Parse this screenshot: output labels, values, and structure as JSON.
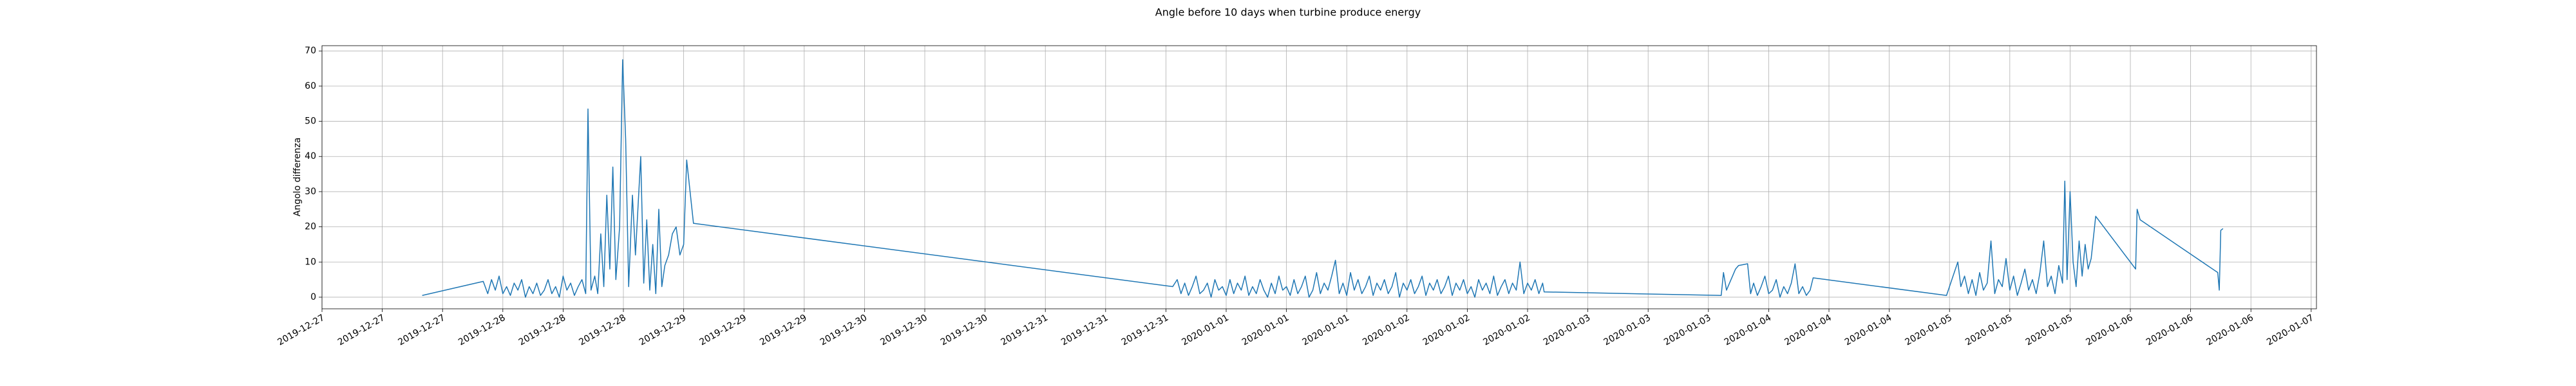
{
  "chart_data": {
    "type": "line",
    "title": "Angle before 10 days when turbine produce energy",
    "ylabel": "Angolo differenza",
    "color": "#1f77b4",
    "grid": true,
    "xlim": [
      0,
      264.7
    ],
    "ylim": [
      -3.3,
      71.5
    ],
    "yticks": [
      0,
      10,
      20,
      30,
      40,
      50,
      60,
      70
    ],
    "xticks": [
      {
        "value": 0,
        "label": "2019-12-27"
      },
      {
        "value": 8,
        "label": "2019-12-27"
      },
      {
        "value": 16,
        "label": "2019-12-27"
      },
      {
        "value": 24,
        "label": "2019-12-28"
      },
      {
        "value": 32,
        "label": "2019-12-28"
      },
      {
        "value": 40,
        "label": "2019-12-28"
      },
      {
        "value": 48,
        "label": "2019-12-29"
      },
      {
        "value": 56,
        "label": "2019-12-29"
      },
      {
        "value": 64,
        "label": "2019-12-29"
      },
      {
        "value": 72,
        "label": "2019-12-30"
      },
      {
        "value": 80,
        "label": "2019-12-30"
      },
      {
        "value": 88,
        "label": "2019-12-30"
      },
      {
        "value": 96,
        "label": "2019-12-31"
      },
      {
        "value": 104,
        "label": "2019-12-31"
      },
      {
        "value": 112,
        "label": "2019-12-31"
      },
      {
        "value": 120,
        "label": "2020-01-01"
      },
      {
        "value": 128,
        "label": "2020-01-01"
      },
      {
        "value": 136,
        "label": "2020-01-01"
      },
      {
        "value": 144,
        "label": "2020-01-02"
      },
      {
        "value": 152,
        "label": "2020-01-02"
      },
      {
        "value": 160,
        "label": "2020-01-02"
      },
      {
        "value": 168,
        "label": "2020-01-03"
      },
      {
        "value": 176,
        "label": "2020-01-03"
      },
      {
        "value": 184,
        "label": "2020-01-03"
      },
      {
        "value": 192,
        "label": "2020-01-04"
      },
      {
        "value": 200,
        "label": "2020-01-04"
      },
      {
        "value": 208,
        "label": "2020-01-04"
      },
      {
        "value": 216,
        "label": "2020-01-05"
      },
      {
        "value": 224,
        "label": "2020-01-05"
      },
      {
        "value": 232,
        "label": "2020-01-05"
      },
      {
        "value": 240,
        "label": "2020-01-06"
      },
      {
        "value": 248,
        "label": "2020-01-06"
      },
      {
        "value": 256,
        "label": "2020-01-06"
      },
      {
        "value": 264,
        "label": "2020-01-07"
      }
    ],
    "x": [
      13.3,
      21.4,
      22,
      22.5,
      23,
      23.5,
      24,
      24.5,
      25,
      25.5,
      26,
      26.5,
      27,
      27.5,
      28,
      28.5,
      29,
      29.5,
      30,
      30.5,
      31,
      31.5,
      32,
      32.5,
      33,
      33.5,
      34,
      34.5,
      35,
      35.3,
      35.7,
      36.2,
      36.6,
      37,
      37.4,
      37.8,
      38.2,
      38.6,
      39,
      39.5,
      39.9,
      40.3,
      40.7,
      41.2,
      41.6,
      42.3,
      42.7,
      43.1,
      43.5,
      43.9,
      44.3,
      44.7,
      45.1,
      45.5,
      46,
      46.5,
      47,
      47.5,
      48,
      48.4,
      49.3,
      112.9,
      113.5,
      114,
      114.5,
      115,
      115.5,
      116,
      116.5,
      117,
      117.5,
      118,
      118.5,
      119,
      119.5,
      120,
      120.5,
      121,
      121.5,
      122,
      122.5,
      123,
      123.5,
      124,
      124.5,
      125,
      125.5,
      126,
      126.5,
      127,
      127.5,
      128,
      128.5,
      129,
      129.5,
      130,
      130.5,
      131,
      131.5,
      132,
      132.5,
      133,
      133.5,
      134,
      134.5,
      135,
      135.5,
      136,
      136.5,
      137,
      137.5,
      138,
      138.5,
      139,
      139.5,
      140,
      140.5,
      141,
      141.5,
      142,
      142.5,
      143,
      143.5,
      144,
      144.5,
      145,
      145.5,
      146,
      146.5,
      147,
      147.5,
      148,
      148.5,
      149,
      149.5,
      150,
      150.5,
      151,
      151.5,
      152,
      152.5,
      153,
      153.5,
      154,
      154.5,
      155,
      155.5,
      156,
      156.5,
      157,
      157.5,
      158,
      158.5,
      159,
      159.5,
      160,
      160.5,
      161,
      161.5,
      162,
      162.2,
      185.7,
      186,
      186.4,
      186.8,
      187.2,
      187.6,
      188,
      189.2,
      189.6,
      190,
      190.5,
      191,
      191.5,
      192,
      192.5,
      193,
      193.5,
      194,
      194.5,
      195,
      195.5,
      196,
      196.5,
      197,
      197.5,
      197.9,
      215.6,
      217.1,
      217.5,
      218,
      218.5,
      219,
      219.5,
      220,
      220.5,
      221,
      221.5,
      222,
      222.5,
      223,
      223.5,
      224,
      224.5,
      225,
      225.5,
      226,
      226.5,
      227,
      227.5,
      228,
      228.5,
      229,
      229.5,
      230,
      230.5,
      231,
      231.3,
      231.6,
      232,
      232.4,
      232.8,
      233.2,
      233.6,
      234,
      234.4,
      234.8,
      235.4,
      240.7,
      240.9,
      241.3,
      251.6,
      251.8,
      252,
      252.3
    ],
    "values": [
      0.5,
      4.5,
      1,
      5,
      2,
      6,
      1,
      3,
      0.5,
      4,
      2,
      5,
      0,
      3,
      1,
      4,
      0.5,
      2,
      5,
      1,
      3,
      0,
      6,
      2,
      4,
      0.5,
      3,
      5,
      1,
      53.5,
      2,
      6,
      1,
      18,
      3,
      29,
      8,
      37,
      5,
      20,
      67.5,
      45,
      3,
      29,
      12,
      40,
      4,
      22,
      2,
      15,
      1,
      25,
      3,
      9,
      12,
      18,
      20,
      12,
      15,
      39,
      21,
      3,
      5,
      1,
      4,
      0.5,
      3,
      6,
      1,
      2,
      4,
      0,
      5,
      2,
      3,
      0.5,
      5,
      1,
      4,
      2,
      6,
      0.5,
      3,
      1,
      5,
      2,
      0,
      4,
      1,
      6,
      2,
      3,
      0.5,
      5,
      1,
      3,
      6,
      0,
      2,
      7,
      1,
      4,
      2,
      6,
      10.5,
      1,
      4,
      0.5,
      7,
      2,
      5,
      1,
      3,
      6,
      0.5,
      4,
      2,
      5,
      1,
      3,
      7,
      0,
      4,
      2,
      5,
      1,
      3,
      6,
      0.5,
      4,
      2,
      5,
      1,
      3,
      6,
      0.5,
      4,
      2,
      5,
      1,
      3,
      0,
      5,
      2,
      4,
      1,
      6,
      0.5,
      3,
      5,
      1,
      4,
      2,
      10,
      1,
      4,
      2,
      5,
      1,
      4,
      1.5,
      0.5,
      7,
      2,
      4,
      6,
      8,
      9,
      9.5,
      1,
      4,
      0.5,
      3,
      6,
      1,
      2,
      5,
      0,
      3,
      1,
      4,
      9.5,
      1,
      3,
      0.5,
      2,
      5.5,
      0.5,
      10,
      3,
      6,
      1,
      5,
      0.5,
      7,
      2,
      4,
      16,
      1,
      5,
      3,
      11,
      2,
      6,
      0.5,
      4,
      8,
      2,
      5,
      1,
      7,
      16,
      3,
      6,
      1,
      9,
      4,
      33,
      5,
      30,
      10,
      3,
      16,
      6,
      15,
      8,
      11,
      23,
      8,
      25,
      22,
      7,
      2,
      19,
      19.5
    ]
  }
}
